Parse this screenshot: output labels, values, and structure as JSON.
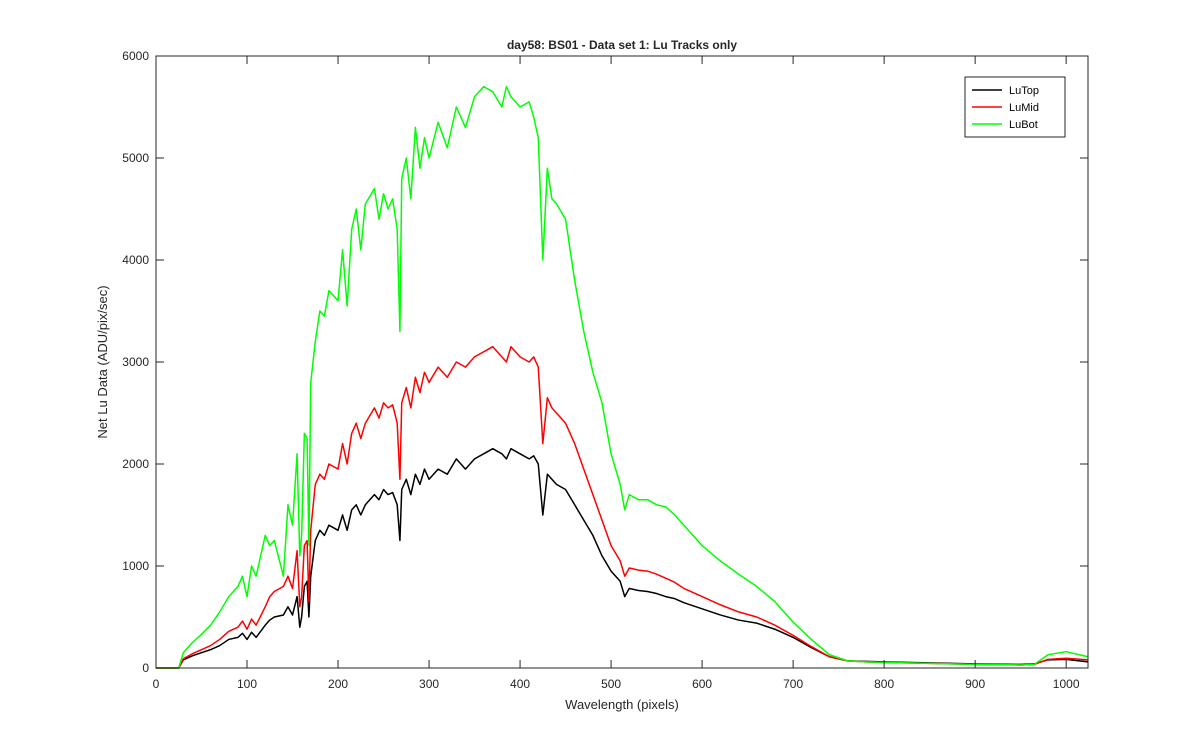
{
  "chart_data": {
    "type": "line",
    "title": "day58: BS01 - Data set 1: Lu Tracks only",
    "xlabel": "Wavelength (pixels)",
    "ylabel": "Net Lu Data (ADU/pix/sec)",
    "xlim": [
      0,
      1024
    ],
    "ylim": [
      0,
      6000
    ],
    "xticks": [
      0,
      100,
      200,
      300,
      400,
      500,
      600,
      700,
      800,
      900,
      1000
    ],
    "yticks": [
      0,
      1000,
      2000,
      3000,
      4000,
      5000,
      6000
    ],
    "xtick_labels": [
      "0",
      "100",
      "200",
      "300",
      "400",
      "500",
      "600",
      "700",
      "800",
      "900",
      "1000"
    ],
    "ytick_labels": [
      "0",
      "1000",
      "2000",
      "3000",
      "4000",
      "5000",
      "6000"
    ],
    "grid": false,
    "legend_position": "top-right",
    "series": [
      {
        "name": "LuTop",
        "color": "#000000",
        "x": [
          0,
          25,
          30,
          40,
          50,
          60,
          70,
          80,
          90,
          95,
          100,
          105,
          110,
          120,
          125,
          130,
          140,
          145,
          150,
          155,
          158,
          160,
          163,
          166,
          168,
          170,
          175,
          180,
          185,
          190,
          200,
          205,
          210,
          215,
          220,
          225,
          230,
          240,
          245,
          250,
          255,
          260,
          265,
          268,
          270,
          275,
          280,
          285,
          290,
          295,
          300,
          310,
          320,
          330,
          340,
          350,
          360,
          370,
          380,
          385,
          390,
          400,
          410,
          415,
          420,
          425,
          430,
          435,
          440,
          450,
          460,
          470,
          480,
          490,
          500,
          510,
          515,
          520,
          530,
          540,
          550,
          560,
          570,
          580,
          600,
          620,
          640,
          660,
          680,
          700,
          720,
          740,
          760,
          780,
          800,
          850,
          900,
          950,
          965,
          980,
          1000,
          1024
        ],
        "y": [
          0,
          0,
          80,
          120,
          150,
          180,
          220,
          280,
          300,
          340,
          280,
          350,
          300,
          420,
          470,
          500,
          520,
          600,
          520,
          700,
          400,
          500,
          800,
          850,
          500,
          900,
          1250,
          1350,
          1300,
          1400,
          1350,
          1500,
          1350,
          1550,
          1600,
          1500,
          1600,
          1700,
          1650,
          1750,
          1700,
          1720,
          1600,
          1250,
          1750,
          1850,
          1700,
          1900,
          1800,
          1950,
          1850,
          1950,
          1900,
          2050,
          1950,
          2050,
          2100,
          2150,
          2100,
          2050,
          2150,
          2100,
          2050,
          2080,
          2000,
          1500,
          1900,
          1850,
          1800,
          1750,
          1600,
          1450,
          1300,
          1100,
          950,
          850,
          700,
          780,
          760,
          750,
          730,
          700,
          680,
          640,
          580,
          520,
          470,
          440,
          380,
          300,
          200,
          110,
          70,
          65,
          60,
          50,
          40,
          35,
          40,
          80,
          85,
          60
        ]
      },
      {
        "name": "LuMid",
        "color": "#ff0000",
        "x": [
          0,
          25,
          30,
          40,
          50,
          60,
          70,
          80,
          90,
          95,
          100,
          105,
          110,
          120,
          125,
          130,
          140,
          145,
          150,
          155,
          158,
          160,
          163,
          166,
          168,
          170,
          175,
          180,
          185,
          190,
          200,
          205,
          210,
          215,
          220,
          225,
          230,
          240,
          245,
          250,
          255,
          260,
          265,
          268,
          270,
          275,
          280,
          285,
          290,
          295,
          300,
          310,
          320,
          330,
          340,
          350,
          360,
          370,
          380,
          385,
          390,
          400,
          410,
          415,
          420,
          425,
          430,
          435,
          440,
          450,
          460,
          470,
          480,
          490,
          500,
          510,
          515,
          520,
          530,
          540,
          550,
          560,
          570,
          580,
          600,
          620,
          640,
          660,
          680,
          700,
          720,
          740,
          760,
          780,
          800,
          850,
          900,
          950,
          965,
          980,
          1000,
          1024
        ],
        "y": [
          0,
          0,
          90,
          140,
          180,
          220,
          280,
          360,
          400,
          460,
          380,
          480,
          420,
          600,
          700,
          750,
          800,
          900,
          780,
          1150,
          600,
          700,
          1200,
          1250,
          650,
          1350,
          1800,
          1900,
          1850,
          2000,
          1950,
          2200,
          2000,
          2300,
          2400,
          2250,
          2400,
          2550,
          2450,
          2600,
          2550,
          2580,
          2400,
          1850,
          2600,
          2750,
          2550,
          2850,
          2700,
          2900,
          2800,
          2950,
          2850,
          3000,
          2950,
          3050,
          3100,
          3150,
          3050,
          3000,
          3150,
          3050,
          3000,
          3050,
          2950,
          2200,
          2650,
          2550,
          2500,
          2400,
          2200,
          1950,
          1700,
          1450,
          1200,
          1050,
          900,
          980,
          960,
          950,
          920,
          880,
          840,
          780,
          700,
          620,
          550,
          500,
          420,
          320,
          210,
          110,
          70,
          60,
          55,
          45,
          35,
          30,
          35,
          85,
          95,
          80
        ]
      },
      {
        "name": "LuBot",
        "color": "#00ff00",
        "x": [
          0,
          25,
          30,
          40,
          50,
          60,
          70,
          80,
          90,
          95,
          100,
          105,
          110,
          120,
          125,
          130,
          140,
          145,
          150,
          155,
          158,
          160,
          163,
          166,
          168,
          170,
          175,
          180,
          185,
          190,
          200,
          205,
          210,
          215,
          220,
          225,
          230,
          240,
          245,
          250,
          255,
          260,
          265,
          268,
          270,
          275,
          280,
          285,
          290,
          295,
          300,
          310,
          320,
          330,
          340,
          350,
          360,
          370,
          380,
          385,
          390,
          400,
          410,
          415,
          420,
          425,
          430,
          435,
          440,
          450,
          460,
          470,
          480,
          490,
          500,
          510,
          515,
          520,
          530,
          540,
          550,
          560,
          570,
          580,
          600,
          620,
          640,
          660,
          680,
          700,
          720,
          740,
          760,
          780,
          800,
          850,
          900,
          950,
          965,
          980,
          1000,
          1024
        ],
        "y": [
          0,
          0,
          150,
          250,
          330,
          420,
          550,
          700,
          800,
          900,
          700,
          1000,
          900,
          1300,
          1200,
          1250,
          900,
          1600,
          1400,
          2100,
          1100,
          1300,
          2300,
          2250,
          1200,
          2800,
          3200,
          3500,
          3450,
          3700,
          3600,
          4100,
          3550,
          4300,
          4500,
          4100,
          4550,
          4700,
          4400,
          4650,
          4500,
          4600,
          4300,
          3300,
          4800,
          5000,
          4600,
          5300,
          4900,
          5200,
          5000,
          5350,
          5100,
          5500,
          5300,
          5600,
          5700,
          5650,
          5500,
          5700,
          5600,
          5500,
          5550,
          5400,
          5200,
          4000,
          4900,
          4600,
          4550,
          4400,
          3800,
          3300,
          2900,
          2600,
          2100,
          1800,
          1550,
          1700,
          1650,
          1650,
          1600,
          1580,
          1500,
          1400,
          1200,
          1050,
          920,
          800,
          650,
          450,
          280,
          130,
          70,
          60,
          55,
          45,
          35,
          30,
          35,
          130,
          160,
          110
        ]
      }
    ]
  }
}
